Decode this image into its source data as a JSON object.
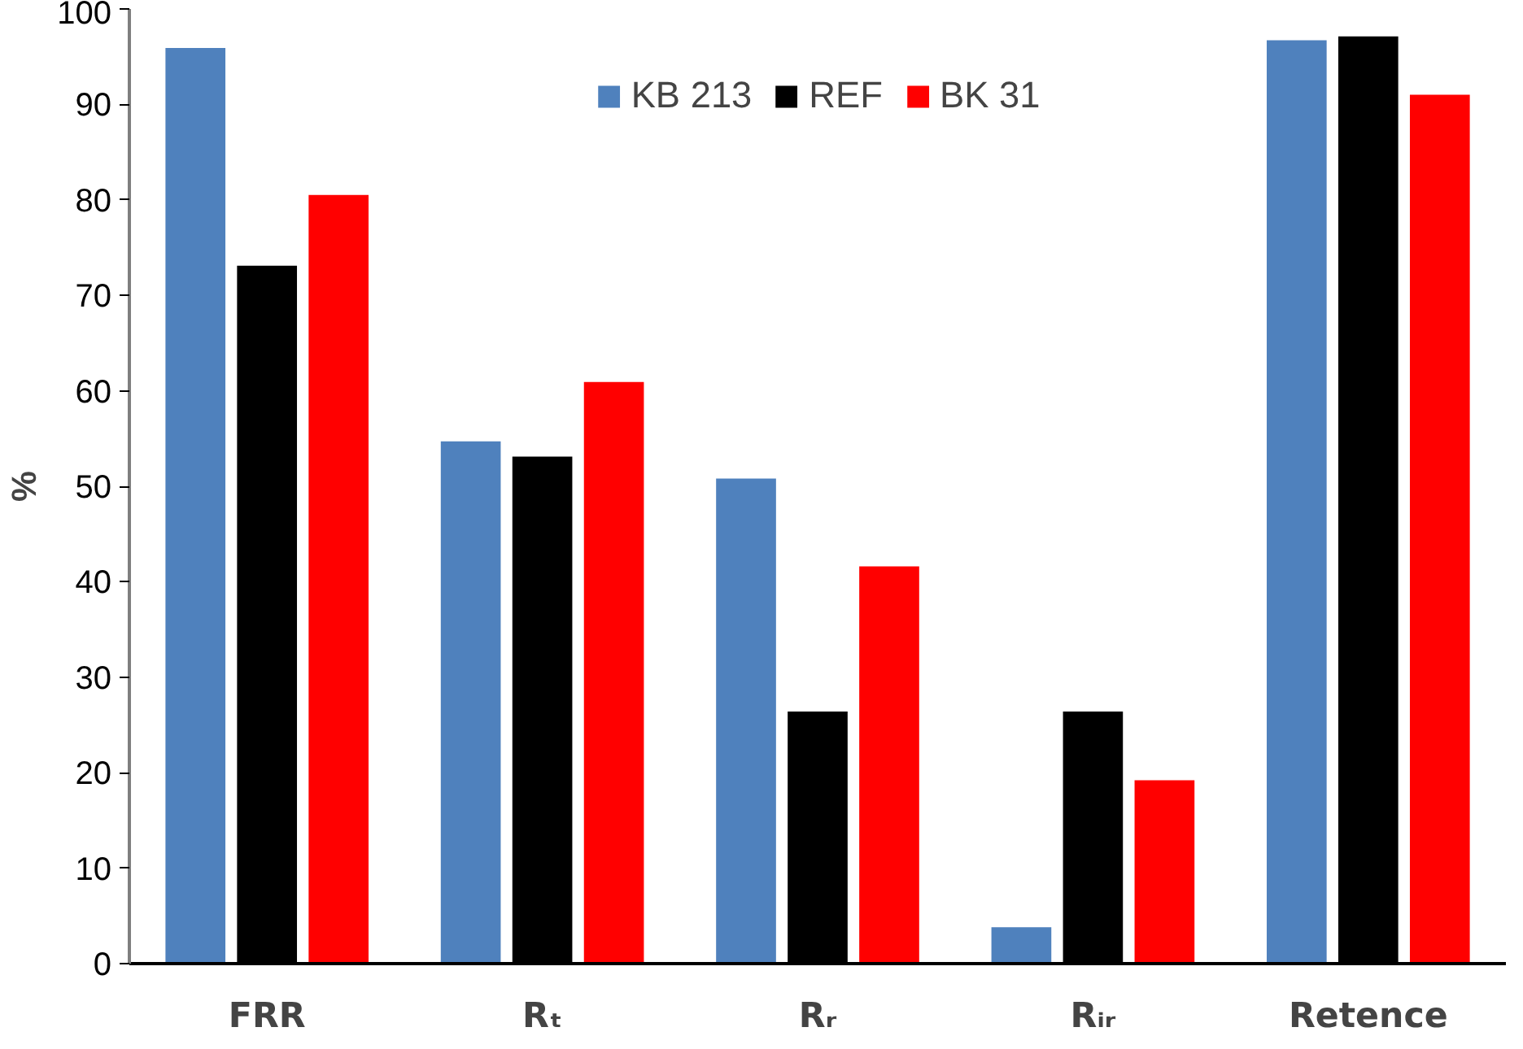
{
  "chart_data": {
    "type": "bar",
    "ylabel": "%",
    "categories": [
      "FRR",
      "Rₜ",
      "Rᵣ",
      "Rᵢᵣ",
      "Retence"
    ],
    "series": [
      {
        "name": "KB 213",
        "color": "#4f81bd",
        "values": [
          96.0,
          54.8,
          50.9,
          3.9,
          96.8
        ]
      },
      {
        "name": "REF",
        "color": "#000000",
        "values": [
          73.2,
          53.2,
          26.5,
          26.5,
          97.2
        ]
      },
      {
        "name": "BK 31",
        "color": "#ff0000",
        "values": [
          80.6,
          61.0,
          41.7,
          19.3,
          91.1
        ]
      }
    ],
    "ylim": [
      0,
      100
    ],
    "yticks": [
      0,
      10,
      20,
      30,
      40,
      50,
      60,
      70,
      80,
      90,
      100
    ],
    "grid": false,
    "legend": "top"
  }
}
